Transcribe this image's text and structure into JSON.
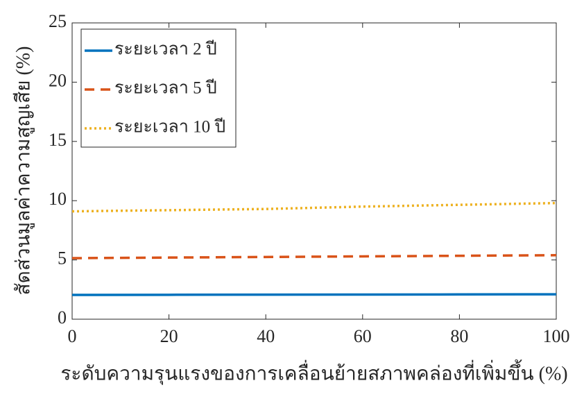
{
  "chart_data": {
    "type": "line",
    "x_label": "ระดับความรุนแรงของการเคลื่อนย้ายสภาพคล่องที่เพิ่มขึ้น (%)",
    "y_label": "สัดส่วนมูลค่าความสูญเสีย (%)",
    "x": [
      0,
      20,
      40,
      60,
      80,
      100
    ],
    "series": [
      {
        "name": "ระยะเวลา 2 ปี",
        "color": "#0072BD",
        "dash": "solid",
        "values": [
          2.05,
          2.06,
          2.07,
          2.08,
          2.09,
          2.1
        ]
      },
      {
        "name": "ระยะเวลา 5 ปี",
        "color": "#D95319",
        "dash": "dashed",
        "values": [
          5.15,
          5.2,
          5.25,
          5.3,
          5.35,
          5.4
        ]
      },
      {
        "name": "ระยะเวลา 10 ปี",
        "color": "#EDB120",
        "dash": "dotted",
        "values": [
          9.1,
          9.2,
          9.3,
          9.5,
          9.65,
          9.8
        ]
      }
    ],
    "xlim": [
      0,
      100
    ],
    "xticks": [
      0,
      20,
      40,
      60,
      80,
      100
    ],
    "ylim": [
      0,
      25
    ],
    "yticks": [
      0,
      5,
      10,
      15,
      20,
      25
    ],
    "grid": false,
    "legend": "upper left"
  }
}
